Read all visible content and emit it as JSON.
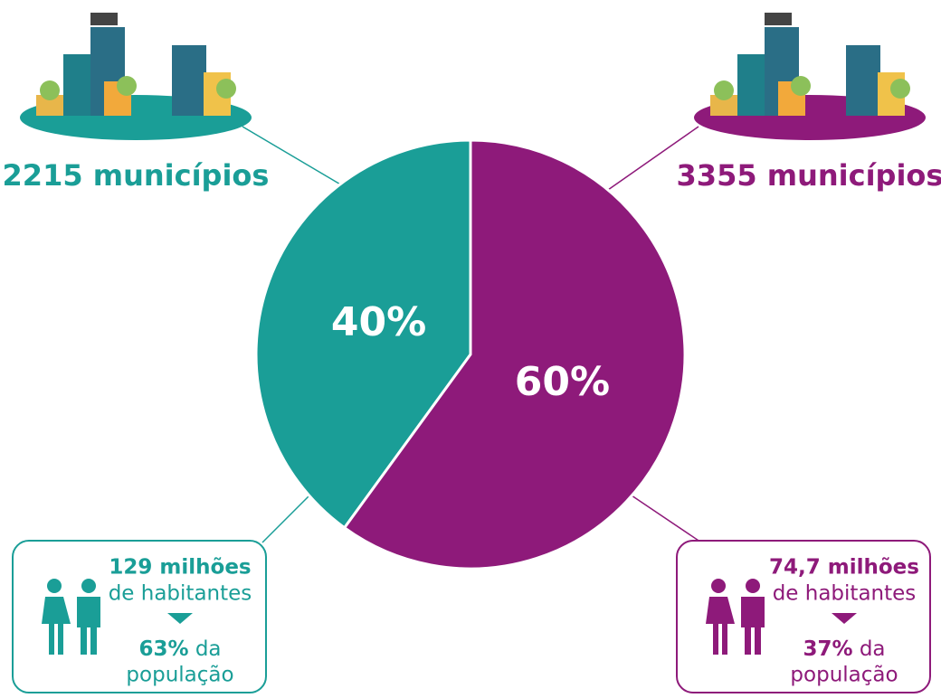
{
  "chart_data": {
    "type": "pie",
    "categories": [
      "2215 municípios",
      "3355 municípios"
    ],
    "values": [
      40,
      60
    ],
    "value_labels": [
      "40%",
      "60%"
    ],
    "colors": [
      "#1a9e97",
      "#8e1a7a"
    ],
    "population": [
      {
        "amount": "129 milhões",
        "unit": "de habitantes",
        "share": "63%",
        "share_suffix": "da",
        "share_unit": "população"
      },
      {
        "amount": "74,7 milhões",
        "unit": "de habitantes",
        "share": "37%",
        "share_suffix": "da",
        "share_unit": "população"
      }
    ]
  }
}
